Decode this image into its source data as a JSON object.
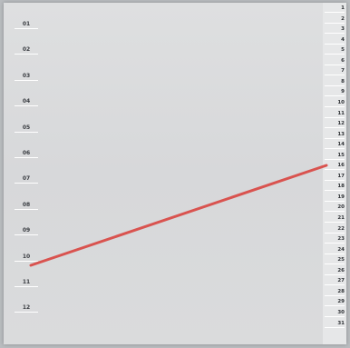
{
  "left_scale": [
    "01",
    "02",
    "03",
    "04",
    "05",
    "06",
    "07",
    "08",
    "09",
    "10",
    "11",
    "12"
  ],
  "right_scale": [
    "1",
    "2",
    "3",
    "4",
    "5",
    "6",
    "7",
    "8",
    "9",
    "10",
    "11",
    "12",
    "13",
    "14",
    "15",
    "16",
    "17",
    "18",
    "19",
    "20",
    "21",
    "22",
    "23",
    "24",
    "25",
    "26",
    "27",
    "28",
    "29",
    "30",
    "31"
  ],
  "line_color": "#d9534f"
}
